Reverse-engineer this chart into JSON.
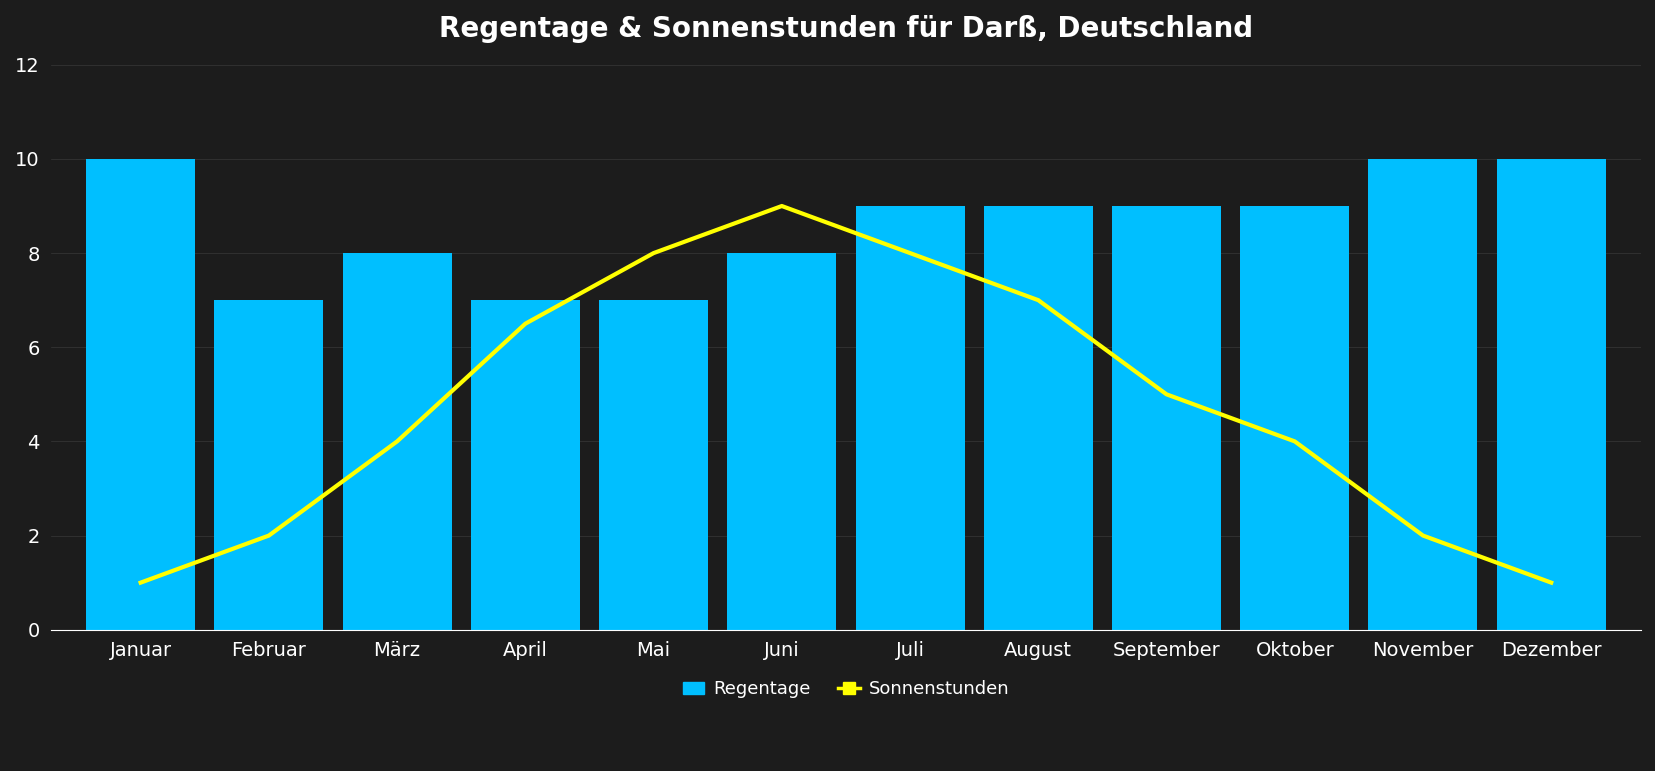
{
  "title": "Regentage & Sonnenstunden für Darß, Deutschland",
  "months": [
    "Januar",
    "Februar",
    "März",
    "April",
    "Mai",
    "Juni",
    "Juli",
    "August",
    "September",
    "Oktober",
    "November",
    "Dezember"
  ],
  "regentage": [
    10,
    7,
    8,
    7,
    7,
    8,
    9,
    9,
    9,
    9,
    10,
    10
  ],
  "sonnenstunden": [
    1,
    2,
    4,
    6.5,
    8,
    9,
    8,
    7,
    5,
    4,
    2,
    1
  ],
  "bar_color": "#00BFFF",
  "line_color": "#FFFF00",
  "background_color": "#1c1c1c",
  "title_color": "#ffffff",
  "tick_color": "#ffffff",
  "grid_color": "#555555",
  "ylim": [
    0,
    12
  ],
  "yticks": [
    0,
    2,
    4,
    6,
    8,
    10,
    12
  ],
  "title_fontsize": 20,
  "tick_fontsize": 14,
  "legend_fontsize": 13,
  "bar_width": 0.85,
  "line_width": 3
}
